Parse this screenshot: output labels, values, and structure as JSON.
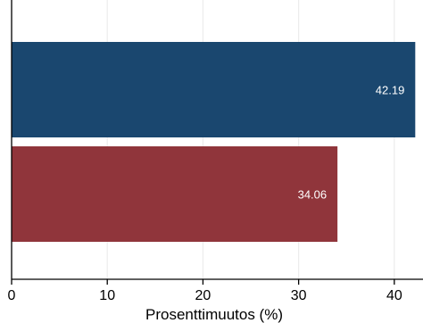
{
  "chart_data": {
    "type": "bar",
    "orientation": "horizontal",
    "title": "",
    "xlabel": "Prosenttimuutos (%)",
    "ylabel": "",
    "xlim": [
      0,
      43
    ],
    "xticks": [
      0,
      10,
      20,
      30,
      40
    ],
    "grid": true,
    "legend": "none",
    "bars": [
      {
        "value": 42.19,
        "label": "42.19",
        "color": "#1a476f"
      },
      {
        "value": 34.06,
        "label": "34.06",
        "color": "#90353b"
      }
    ]
  }
}
